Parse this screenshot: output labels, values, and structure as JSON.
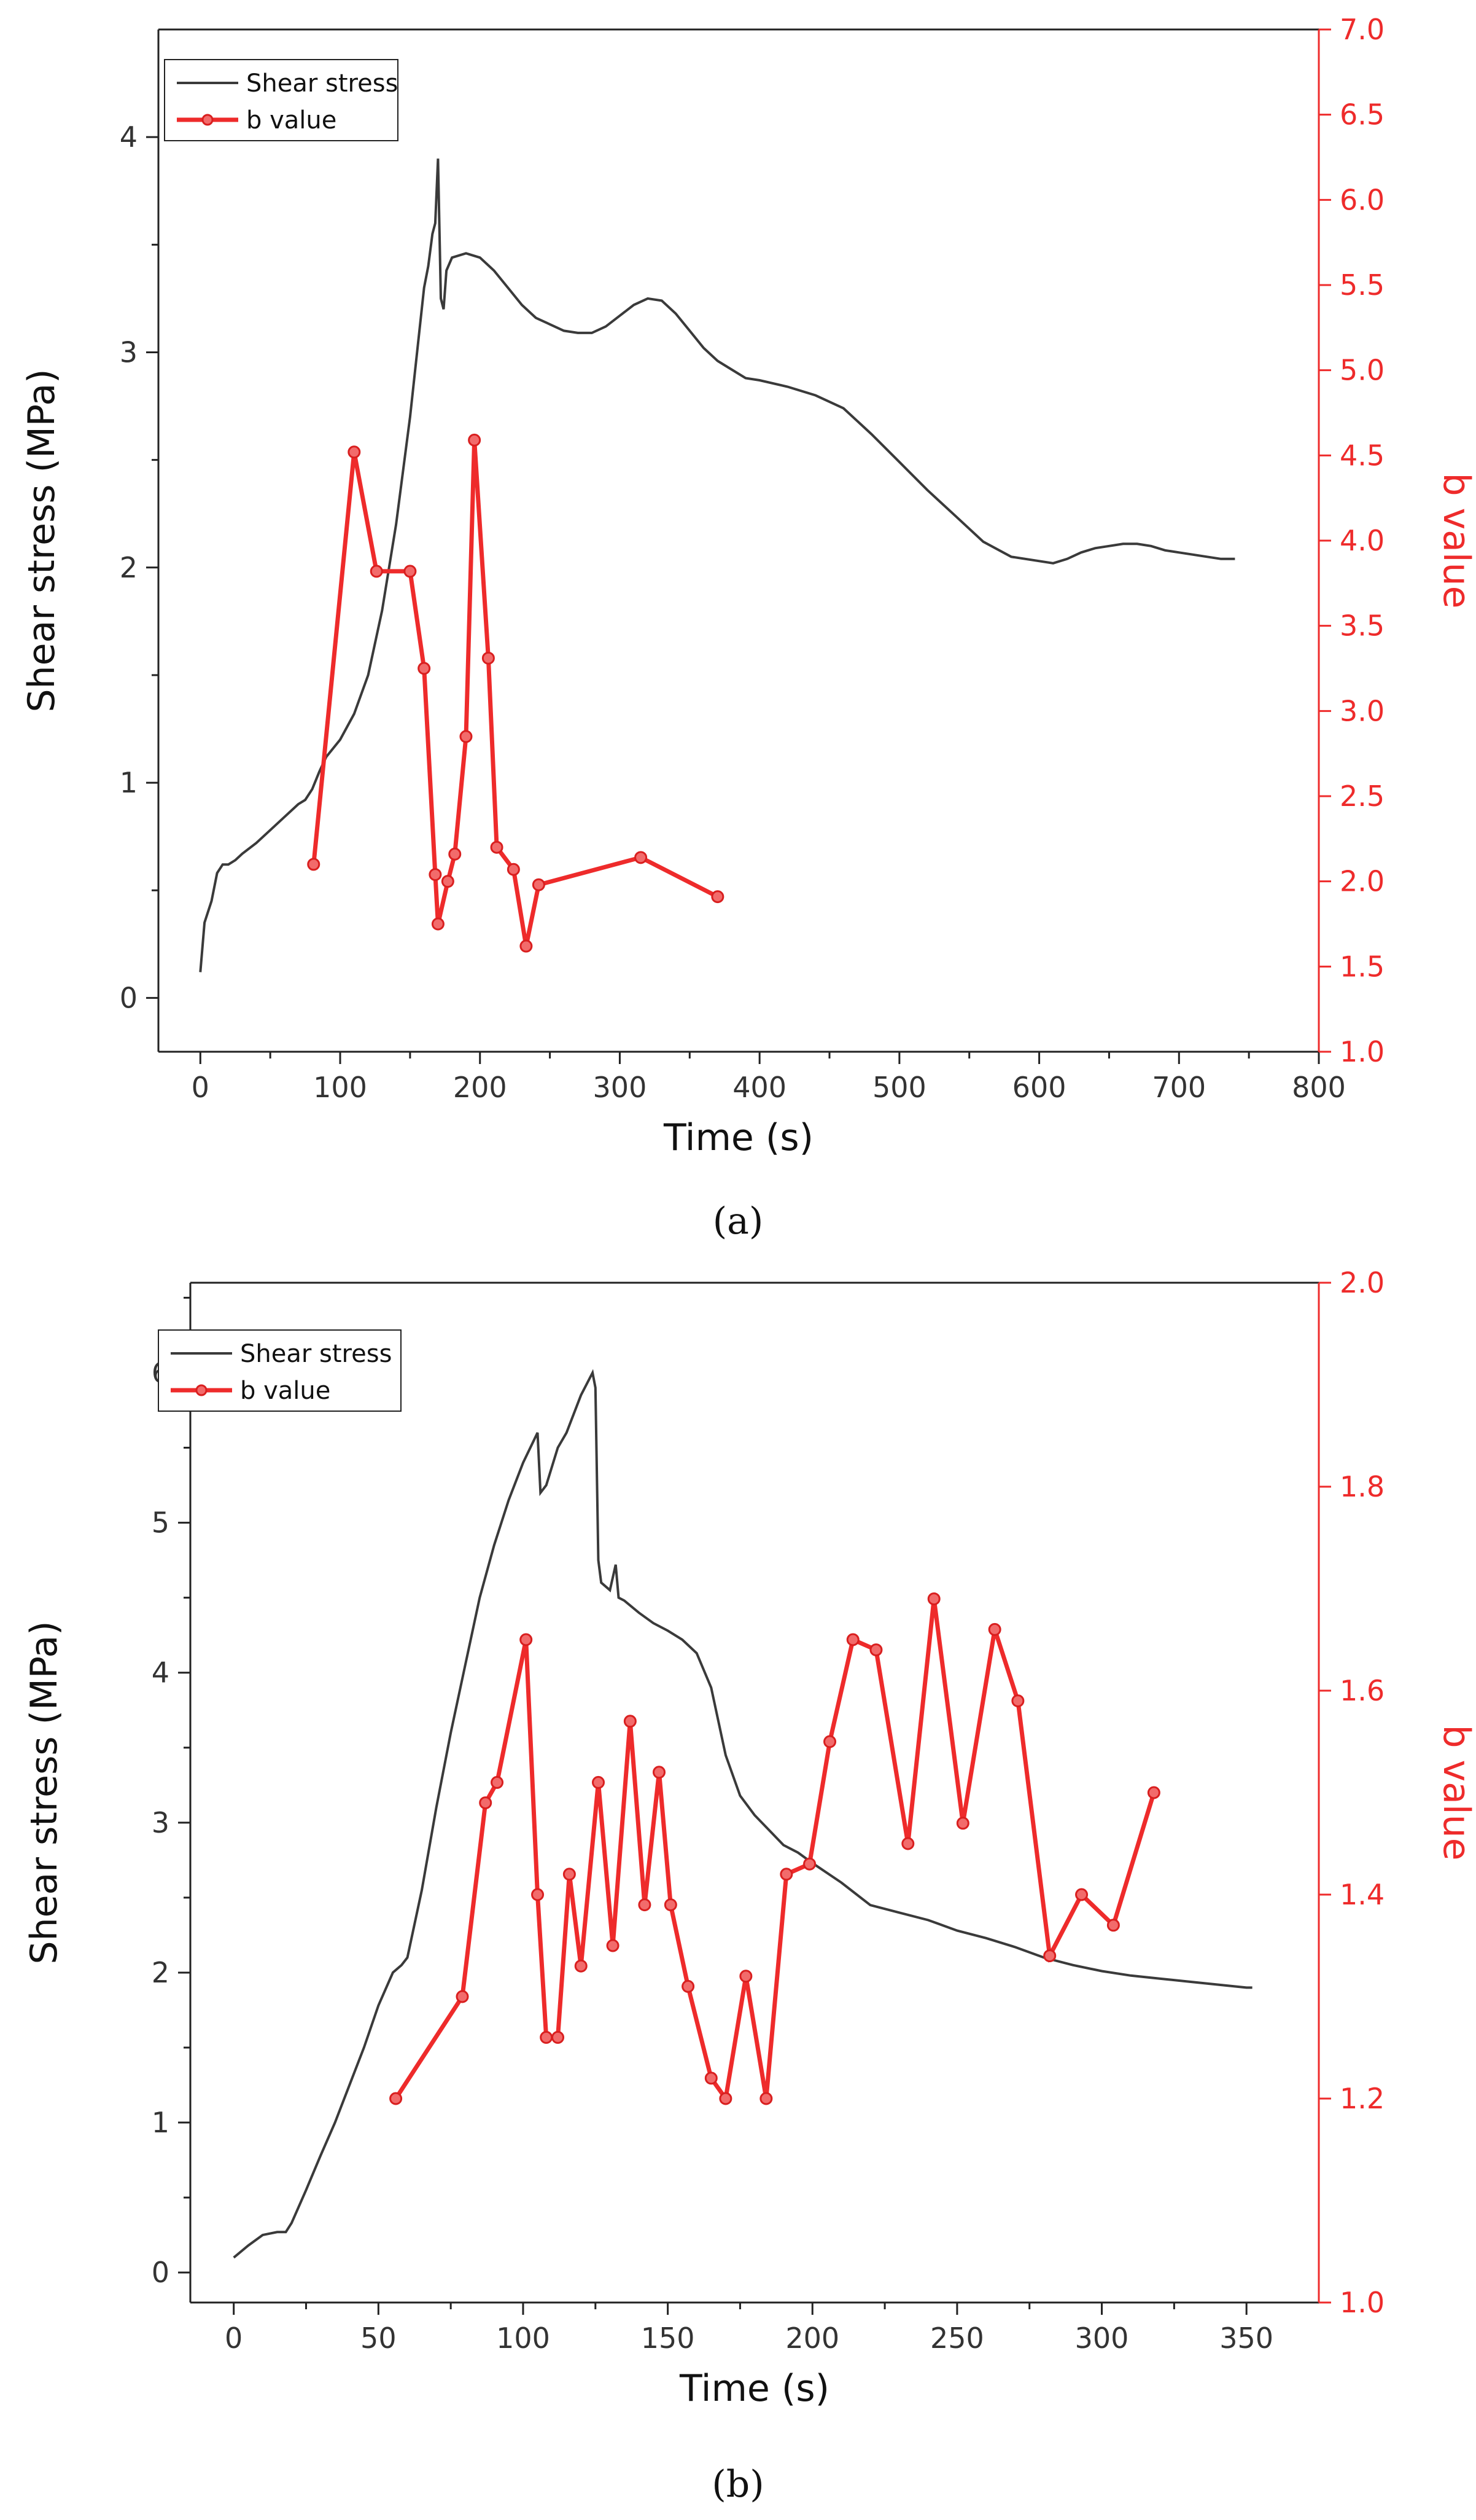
{
  "chart_data": [
    {
      "type": "line",
      "panel": "a",
      "caption": "(a)",
      "xlabel": "Time (s)",
      "ylabel": "Shear stress (MPa)",
      "y2label": "b value",
      "xlim": [
        -30,
        800
      ],
      "ylim": [
        -0.25,
        4.5
      ],
      "y2lim": [
        1.0,
        7.0
      ],
      "xticks": [
        0,
        100,
        200,
        300,
        400,
        500,
        600,
        700,
        800
      ],
      "yticks": [
        0,
        1,
        2,
        3,
        4
      ],
      "y2ticks": [
        "1.0",
        "1.5",
        "2.0",
        "2.5",
        "3.0",
        "3.5",
        "4.0",
        "4.5",
        "5.0",
        "5.5",
        "6.0",
        "6.5",
        "7.0"
      ],
      "legend": [
        "Shear stress",
        "b value"
      ],
      "series": [
        {
          "name": "Shear stress",
          "axis": "left",
          "x": [
            0,
            3,
            8,
            12,
            16,
            20,
            25,
            30,
            40,
            50,
            60,
            70,
            75,
            80,
            85,
            90,
            95,
            100,
            110,
            120,
            130,
            140,
            150,
            160,
            163,
            166,
            168,
            170,
            172,
            174,
            176,
            180,
            190,
            200,
            210,
            220,
            230,
            240,
            250,
            260,
            270,
            280,
            290,
            300,
            310,
            320,
            330,
            340,
            350,
            360,
            370,
            380,
            390,
            400,
            420,
            440,
            460,
            480,
            500,
            520,
            540,
            560,
            580,
            600,
            610,
            620,
            630,
            640,
            650,
            660,
            670,
            680,
            690,
            700,
            710,
            720,
            730,
            740
          ],
          "y": [
            0.12,
            0.35,
            0.45,
            0.58,
            0.62,
            0.62,
            0.64,
            0.67,
            0.72,
            0.78,
            0.84,
            0.9,
            0.92,
            0.97,
            1.05,
            1.12,
            1.16,
            1.2,
            1.32,
            1.5,
            1.8,
            2.2,
            2.7,
            3.3,
            3.4,
            3.55,
            3.6,
            3.9,
            3.25,
            3.2,
            3.38,
            3.44,
            3.46,
            3.44,
            3.38,
            3.3,
            3.22,
            3.16,
            3.13,
            3.1,
            3.09,
            3.09,
            3.12,
            3.17,
            3.22,
            3.25,
            3.24,
            3.18,
            3.1,
            3.02,
            2.96,
            2.92,
            2.88,
            2.87,
            2.84,
            2.8,
            2.74,
            2.62,
            2.49,
            2.36,
            2.24,
            2.12,
            2.05,
            2.03,
            2.02,
            2.04,
            2.07,
            2.09,
            2.1,
            2.11,
            2.11,
            2.1,
            2.08,
            2.07,
            2.06,
            2.05,
            2.04,
            2.04
          ]
        },
        {
          "name": "b value",
          "axis": "right",
          "x": [
            81,
            110,
            126,
            150,
            160,
            168,
            170,
            177,
            182,
            190,
            196,
            206,
            212,
            224,
            233,
            242,
            315,
            370
          ],
          "y": [
            2.1,
            4.52,
            3.82,
            3.82,
            3.25,
            2.04,
            1.75,
            2.0,
            2.16,
            2.85,
            4.59,
            3.31,
            2.2,
            2.07,
            1.62,
            1.98,
            2.14,
            1.91
          ]
        }
      ]
    },
    {
      "type": "line",
      "panel": "b",
      "caption": "(b)",
      "xlabel": "Time (s)",
      "ylabel": "Shear stress (MPa)",
      "y2label": "b value",
      "xlim": [
        -15,
        375
      ],
      "ylim": [
        -0.2,
        6.6
      ],
      "y2lim": [
        1.0,
        2.0
      ],
      "xticks": [
        0,
        50,
        100,
        150,
        200,
        250,
        300,
        350
      ],
      "yticks": [
        0,
        1,
        2,
        3,
        4,
        5,
        6
      ],
      "y2ticks": [
        "1.0",
        "1.2",
        "1.4",
        "1.6",
        "1.8",
        "2.0"
      ],
      "legend": [
        "Shear stress",
        "b value"
      ],
      "series": [
        {
          "name": "Shear stress",
          "axis": "left",
          "x": [
            0,
            5,
            10,
            15,
            18,
            20,
            25,
            30,
            35,
            40,
            45,
            50,
            55,
            58,
            60,
            65,
            70,
            75,
            80,
            85,
            90,
            95,
            100,
            105,
            106,
            108,
            112,
            115,
            120,
            124,
            125,
            126,
            127,
            130,
            132,
            133,
            135,
            140,
            145,
            150,
            155,
            160,
            165,
            170,
            175,
            180,
            185,
            190,
            195,
            200,
            210,
            220,
            230,
            240,
            250,
            260,
            270,
            280,
            290,
            300,
            310,
            320,
            330,
            340,
            350,
            352
          ],
          "y": [
            0.1,
            0.18,
            0.25,
            0.27,
            0.27,
            0.33,
            0.55,
            0.78,
            1.0,
            1.25,
            1.5,
            1.78,
            2.0,
            2.05,
            2.1,
            2.55,
            3.1,
            3.6,
            4.05,
            4.5,
            4.85,
            5.15,
            5.4,
            5.6,
            5.2,
            5.25,
            5.5,
            5.6,
            5.85,
            6.0,
            5.9,
            4.75,
            4.6,
            4.55,
            4.72,
            4.5,
            4.48,
            4.4,
            4.33,
            4.28,
            4.22,
            4.13,
            3.9,
            3.45,
            3.18,
            3.05,
            2.95,
            2.85,
            2.8,
            2.73,
            2.6,
            2.45,
            2.4,
            2.35,
            2.28,
            2.23,
            2.17,
            2.1,
            2.05,
            2.01,
            1.98,
            1.96,
            1.94,
            1.92,
            1.9,
            1.9
          ]
        },
        {
          "name": "b value",
          "axis": "right",
          "x": [
            56,
            79,
            87,
            91,
            101,
            105,
            108,
            112,
            116,
            120,
            126,
            131,
            137,
            142,
            147,
            151,
            157,
            165,
            170,
            177,
            184,
            191,
            199,
            206,
            214,
            222,
            233,
            242,
            252,
            263,
            271,
            282,
            293,
            304,
            318
          ],
          "y": [
            1.2,
            1.3,
            1.49,
            1.51,
            1.65,
            1.4,
            1.26,
            1.26,
            1.42,
            1.33,
            1.51,
            1.35,
            1.57,
            1.39,
            1.52,
            1.39,
            1.31,
            1.22,
            1.2,
            1.32,
            1.2,
            1.42,
            1.43,
            1.55,
            1.65,
            1.64,
            1.45,
            1.69,
            1.47,
            1.66,
            1.59,
            1.34,
            1.4,
            1.37,
            1.5
          ]
        }
      ]
    }
  ]
}
